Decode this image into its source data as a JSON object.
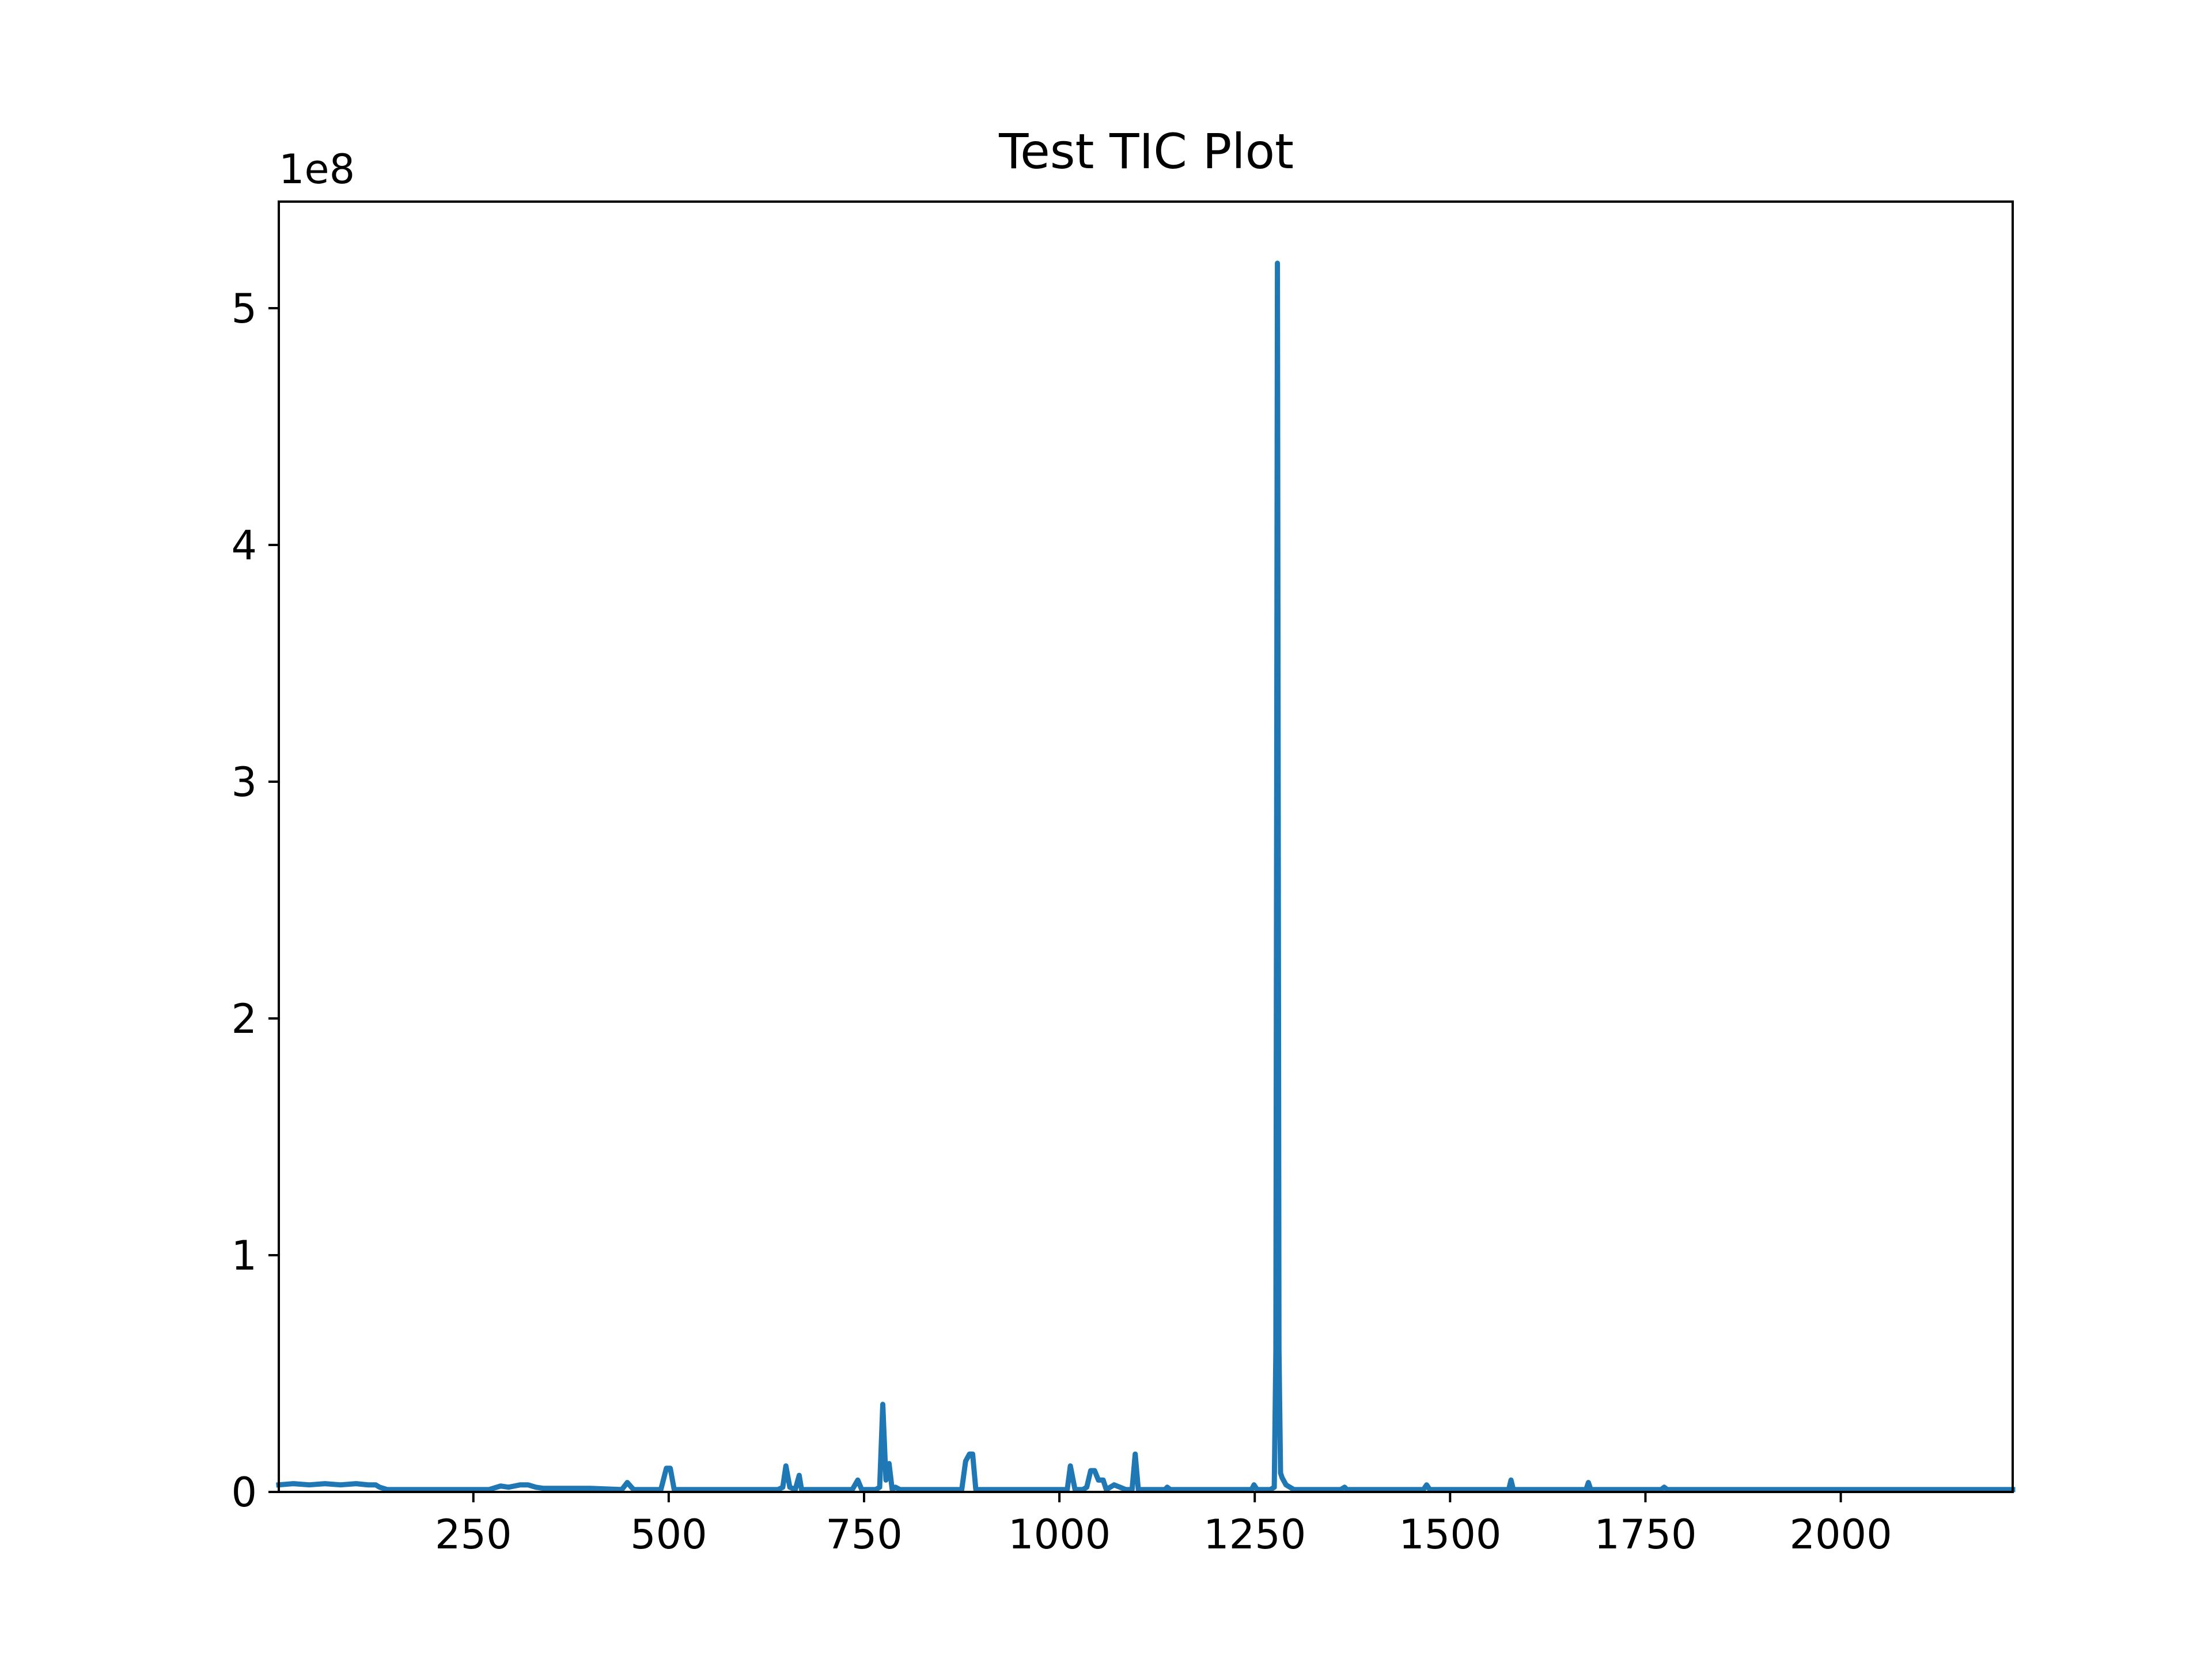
{
  "chart_data": {
    "type": "line",
    "title": "Test TIC Plot",
    "xlabel": "",
    "ylabel": "",
    "y_offset_label": "1e8",
    "y_scale": 100000000,
    "xlim": [
      1,
      2220
    ],
    "ylim": [
      0,
      5.45
    ],
    "x_ticks": [
      250,
      500,
      750,
      1000,
      1250,
      1500,
      1750,
      2000
    ],
    "x_tick_labels": [
      "250",
      "500",
      "750",
      "1000",
      "1250",
      "1500",
      "1750",
      "2000"
    ],
    "y_ticks": [
      0,
      1,
      2,
      3,
      4,
      5
    ],
    "y_tick_labels": [
      "0",
      "1",
      "2",
      "3",
      "4",
      "5"
    ],
    "grid": false,
    "legend": "none",
    "series": [
      {
        "color": "#1f77b4",
        "x": [
          1,
          20,
          40,
          60,
          80,
          100,
          115,
          125,
          130,
          140,
          200,
          270,
          285,
          295,
          310,
          320,
          330,
          340,
          400,
          440,
          447,
          455,
          470,
          490,
          497,
          502,
          507,
          515,
          560,
          600,
          640,
          646,
          650,
          655,
          662,
          667,
          670,
          675,
          700,
          735,
          742,
          747,
          765,
          770,
          774,
          778,
          782,
          786,
          790,
          796,
          860,
          875,
          880,
          885,
          889,
          893,
          900,
          960,
          1005,
          1010,
          1014,
          1020,
          1030,
          1035,
          1040,
          1045,
          1050,
          1056,
          1060,
          1070,
          1085,
          1093,
          1097,
          1101,
          1110,
          1135,
          1138,
          1142,
          1240,
          1246,
          1249,
          1253,
          1270,
          1275,
          1277,
          1279,
          1281,
          1283,
          1285,
          1290,
          1300,
          1360,
          1365,
          1368,
          1460,
          1466,
          1470,
          1474,
          1570,
          1575,
          1578,
          1581,
          1670,
          1674,
          1677,
          1680,
          1770,
          1774,
          1778,
          1800,
          2000,
          2220
        ],
        "y": [
          0.03,
          0.035,
          0.03,
          0.035,
          0.03,
          0.035,
          0.03,
          0.03,
          0.02,
          0.01,
          0.01,
          0.01,
          0.025,
          0.02,
          0.03,
          0.03,
          0.02,
          0.015,
          0.015,
          0.01,
          0.04,
          0.01,
          0.01,
          0.01,
          0.1,
          0.1,
          0.01,
          0.01,
          0.01,
          0.01,
          0.01,
          0.02,
          0.11,
          0.02,
          0.01,
          0.07,
          0.01,
          0.01,
          0.01,
          0.01,
          0.05,
          0.01,
          0.01,
          0.02,
          0.37,
          0.05,
          0.12,
          0.01,
          0.02,
          0.01,
          0.01,
          0.01,
          0.13,
          0.16,
          0.16,
          0.01,
          0.01,
          0.01,
          0.01,
          0.01,
          0.11,
          0.01,
          0.01,
          0.02,
          0.09,
          0.09,
          0.05,
          0.05,
          0.01,
          0.03,
          0.01,
          0.01,
          0.16,
          0.01,
          0.01,
          0.01,
          0.02,
          0.01,
          0.01,
          0.01,
          0.03,
          0.01,
          0.01,
          0.02,
          0.6,
          5.19,
          0.6,
          0.08,
          0.06,
          0.03,
          0.01,
          0.01,
          0.02,
          0.01,
          0.01,
          0.01,
          0.03,
          0.01,
          0.01,
          0.01,
          0.05,
          0.01,
          0.01,
          0.01,
          0.04,
          0.01,
          0.01,
          0.02,
          0.01,
          0.01,
          0.01,
          0.01
        ]
      }
    ]
  }
}
